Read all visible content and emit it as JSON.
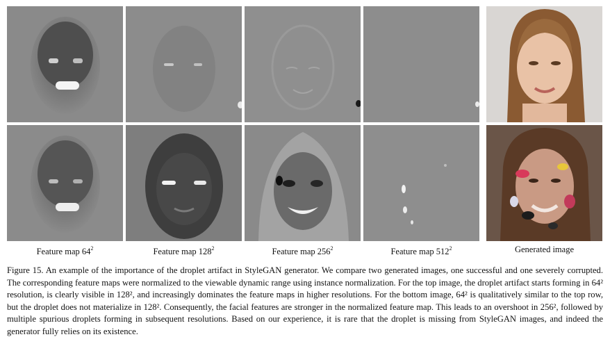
{
  "labels": [
    {
      "text": "Feature map 64",
      "sup": "2"
    },
    {
      "text": "Feature map 128",
      "sup": "2"
    },
    {
      "text": "Feature map 256",
      "sup": "2"
    },
    {
      "text": "Feature map 512",
      "sup": "2"
    },
    {
      "text": "Generated image",
      "sup": ""
    }
  ],
  "caption": "Figure 15.  An example of the importance of the droplet artifact in StyleGAN generator. We compare two generated images, one successful and one severely corrupted. The corresponding feature maps were normalized to the viewable dynamic range using instance normalization. For the top image, the droplet artifact starts forming in 64² resolution, is clearly visible in 128², and increasingly dominates the feature maps in higher resolutions. For the bottom image, 64² is qualitatively similar to the top row, but the droplet does not materialize in 128². Consequently, the facial features are stronger in the normalized feature map. This leads to an overshoot in 256², followed by multiple spurious droplets forming in subsequent resolutions. Based on our experience, it is rare that the droplet is missing from StyleGAN images, and indeed the generator fully relies on its existence."
}
